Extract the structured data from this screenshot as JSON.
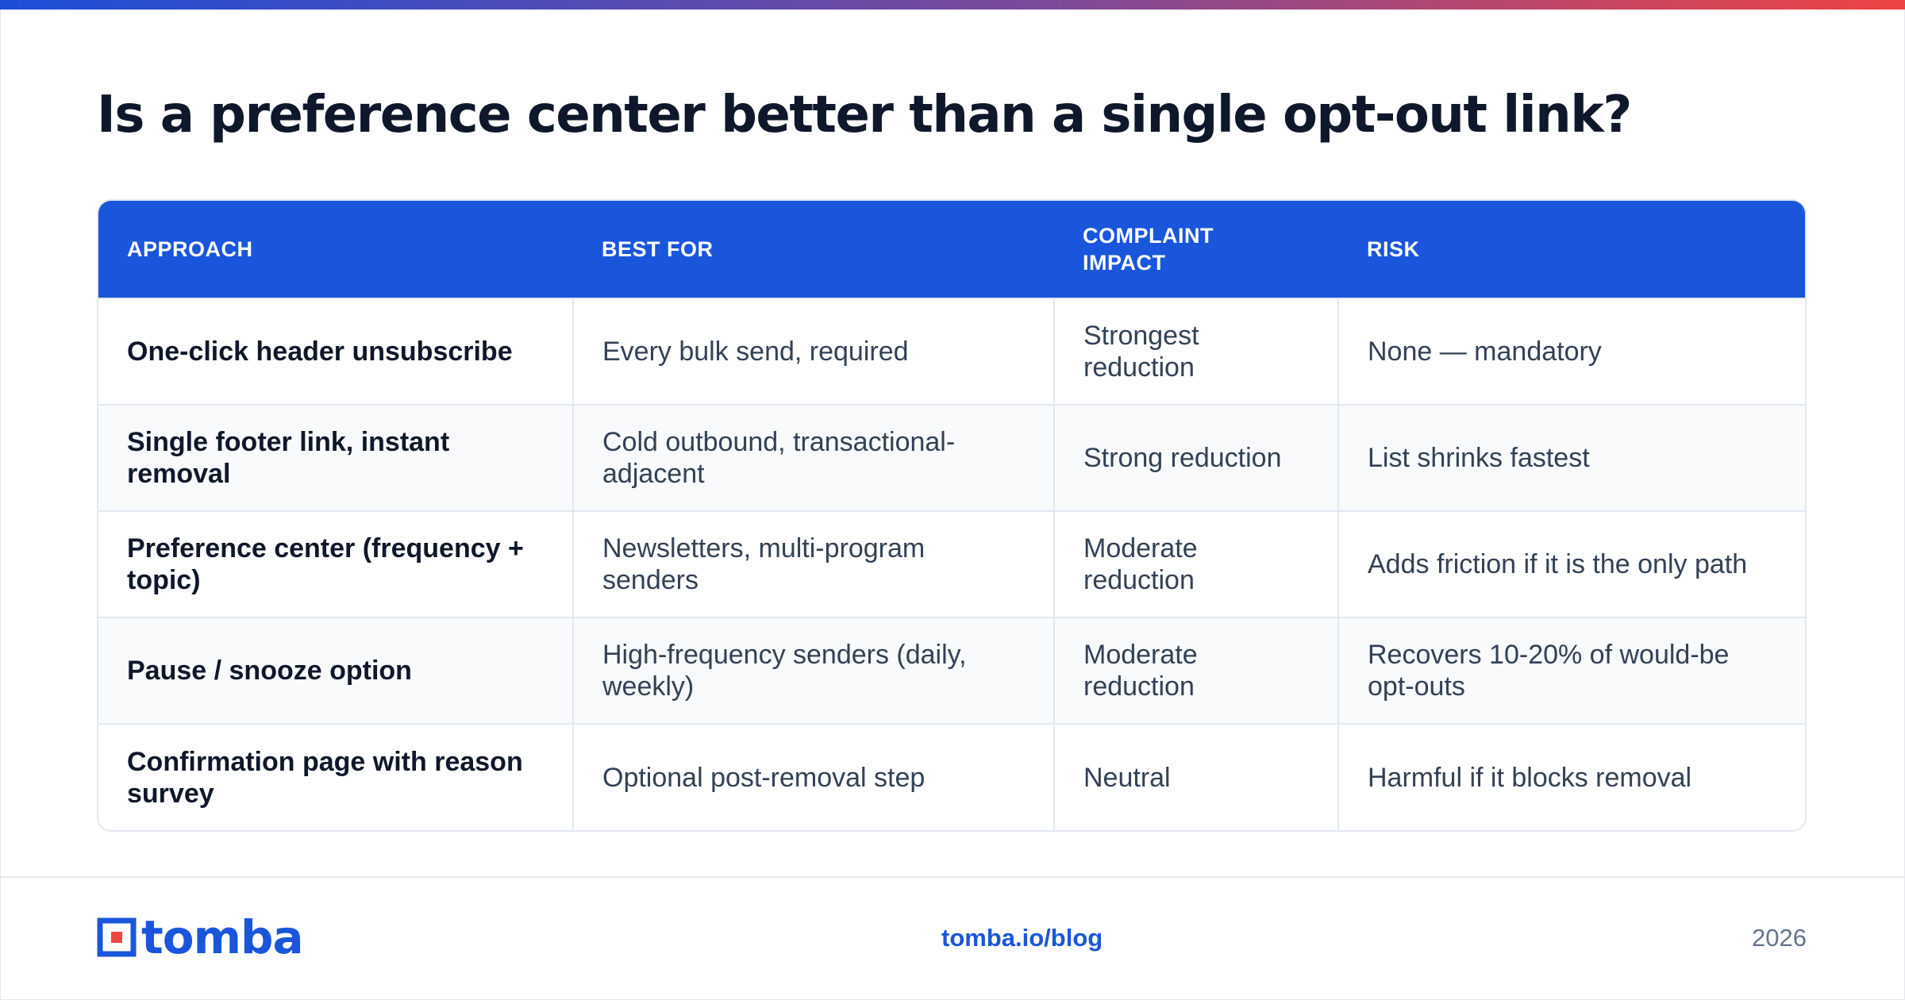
{
  "title": "Is a preference center better than a single opt-out link?",
  "colors": {
    "brand_blue": "#1a56db",
    "accent_red": "#ef4444",
    "text_dark": "#0f172a"
  },
  "table": {
    "headers": [
      "APPROACH",
      "BEST FOR",
      "COMPLAINT IMPACT",
      "RISK"
    ],
    "rows": [
      [
        "One-click header unsubscribe",
        "Every bulk send, required",
        "Strongest reduction",
        "None — mandatory"
      ],
      [
        "Single footer link, instant removal",
        "Cold outbound, transactional-adjacent",
        "Strong reduction",
        "List shrinks fastest"
      ],
      [
        "Preference center (frequency + topic)",
        "Newsletters, multi-program senders",
        "Moderate reduction",
        "Adds friction if it is the only path"
      ],
      [
        "Pause / snooze option",
        "High-frequency senders (daily, weekly)",
        "Moderate reduction",
        "Recovers 10-20% of would-be opt-outs"
      ],
      [
        "Confirmation page with reason survey",
        "Optional post-removal step",
        "Neutral",
        "Harmful if it blocks removal"
      ]
    ]
  },
  "footer": {
    "logo_text": "tomba",
    "logo_icon": "tomba-logo-icon",
    "link": "tomba.io/blog",
    "year": "2026"
  }
}
